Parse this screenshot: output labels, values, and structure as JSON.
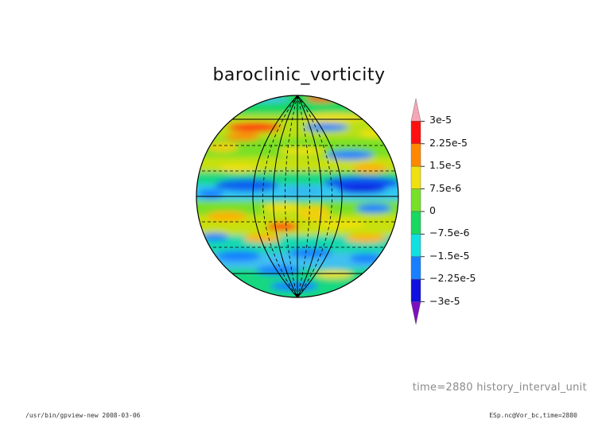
{
  "title": "baroclinic_vorticity",
  "colorbar": {
    "labels": [
      "3e-5",
      "2.25e-5",
      "1.5e-5",
      "7.5e-6",
      "0",
      "−7.5e-6",
      "−1.5e-5",
      "−2.25e-5",
      "−3e-5"
    ],
    "colors": [
      "#f7a6b4",
      "#ff1010",
      "#ff8800",
      "#f0e010",
      "#78e028",
      "#18d860",
      "#10e0e0",
      "#1880ff",
      "#1010e0",
      "#7a10c0"
    ]
  },
  "time_label": "time=2880  history_interval_unit",
  "footer": {
    "left": "/usr/bin/gpview-new   2008-03-06",
    "right": "ESp.nc@Vor_bc,time=2880"
  }
}
